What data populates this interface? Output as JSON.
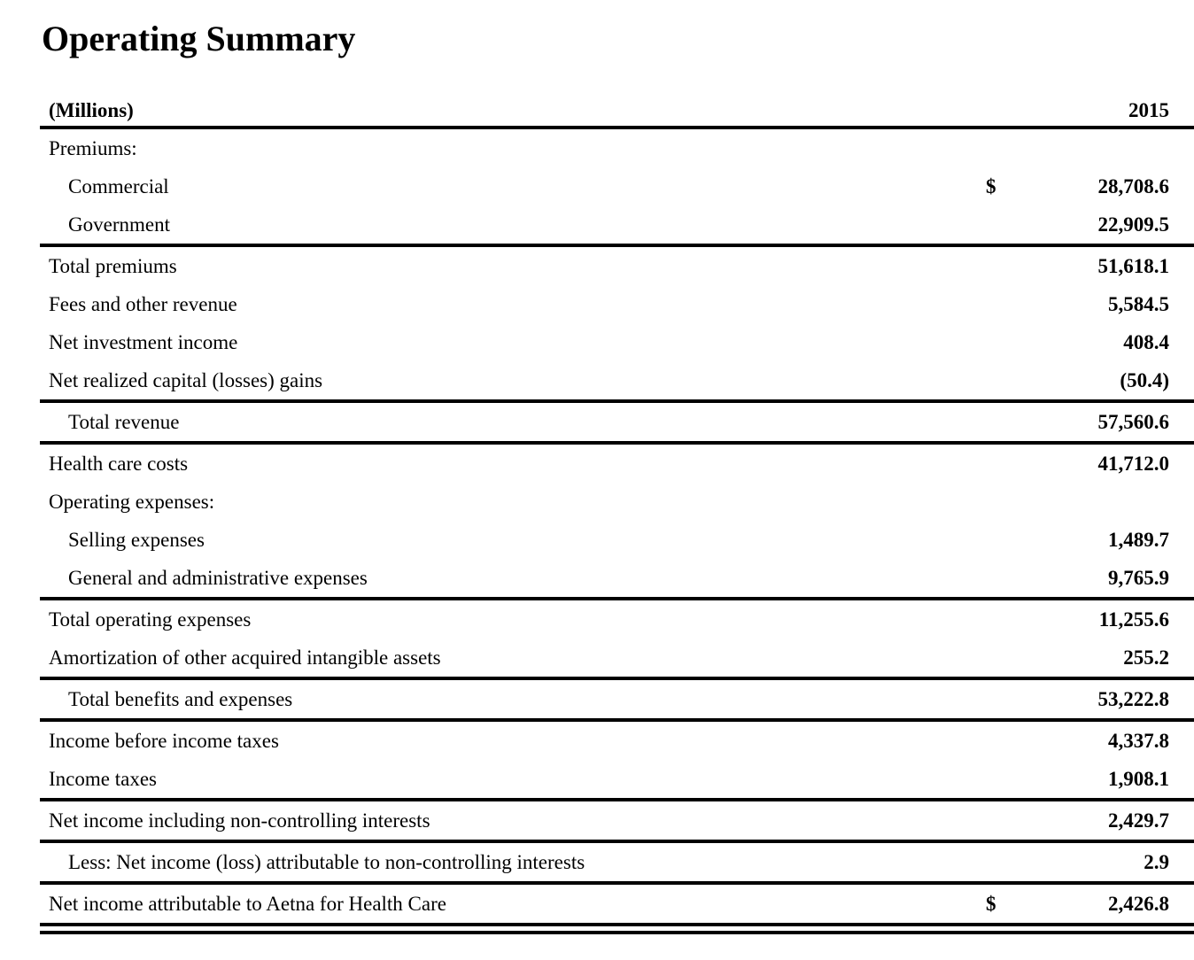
{
  "title": "Operating Summary",
  "header": {
    "units_label": "(Millions)",
    "year": "2015"
  },
  "table": {
    "rows": [
      {
        "label": "Premiums:",
        "indent": 0,
        "dollar": "",
        "value": "",
        "rule": "none"
      },
      {
        "label": "Commercial",
        "indent": 1,
        "dollar": "$",
        "value": "28,708.6",
        "rule": "none"
      },
      {
        "label": "Government",
        "indent": 1,
        "dollar": "",
        "value": "22,909.5",
        "rule": "single"
      },
      {
        "label": "Total premiums",
        "indent": 0,
        "dollar": "",
        "value": "51,618.1",
        "rule": "none"
      },
      {
        "label": "Fees and other revenue",
        "indent": 0,
        "dollar": "",
        "value": "5,584.5",
        "rule": "none"
      },
      {
        "label": "Net investment income",
        "indent": 0,
        "dollar": "",
        "value": "408.4",
        "rule": "none"
      },
      {
        "label": "Net realized capital (losses) gains",
        "indent": 0,
        "dollar": "",
        "value": "(50.4)",
        "rule": "single"
      },
      {
        "label": "Total revenue",
        "indent": 1,
        "dollar": "",
        "value": "57,560.6",
        "rule": "single"
      },
      {
        "label": "Health care costs",
        "indent": 0,
        "dollar": "",
        "value": "41,712.0",
        "rule": "none"
      },
      {
        "label": "Operating expenses:",
        "indent": 0,
        "dollar": "",
        "value": "",
        "rule": "none"
      },
      {
        "label": "Selling expenses",
        "indent": 1,
        "dollar": "",
        "value": "1,489.7",
        "rule": "none"
      },
      {
        "label": "General and administrative expenses",
        "indent": 1,
        "dollar": "",
        "value": "9,765.9",
        "rule": "single"
      },
      {
        "label": "Total operating expenses",
        "indent": 0,
        "dollar": "",
        "value": "11,255.6",
        "rule": "none"
      },
      {
        "label": "Amortization of other acquired intangible assets",
        "indent": 0,
        "dollar": "",
        "value": "255.2",
        "rule": "single"
      },
      {
        "label": "Total benefits and expenses",
        "indent": 1,
        "dollar": "",
        "value": "53,222.8",
        "rule": "single"
      },
      {
        "label": "Income before income taxes",
        "indent": 0,
        "dollar": "",
        "value": "4,337.8",
        "rule": "none"
      },
      {
        "label": "Income taxes",
        "indent": 0,
        "dollar": "",
        "value": "1,908.1",
        "rule": "single"
      },
      {
        "label": "Net income including non-controlling interests",
        "indent": 0,
        "dollar": "",
        "value": "2,429.7",
        "rule": "single"
      },
      {
        "label": "Less: Net income (loss) attributable to non-controlling interests",
        "indent": 1,
        "dollar": "",
        "value": "2.9",
        "rule": "single"
      },
      {
        "label": "Net income attributable to Aetna for Health Care",
        "indent": 0,
        "dollar": "$",
        "value": "2,426.8",
        "rule": "double"
      }
    ]
  },
  "colors": {
    "text": "#000000",
    "background": "#ffffff",
    "rule": "#000000"
  }
}
